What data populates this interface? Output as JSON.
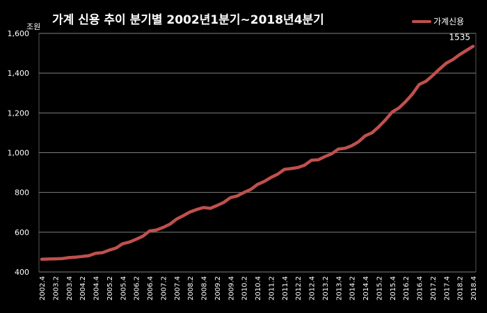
{
  "chart_data": {
    "type": "line",
    "title": "가계 신용 추이  분기별 2002년1분기~2018년4분기",
    "unit_label": "조원",
    "ylim": [
      400,
      1600
    ],
    "yticks": [
      400,
      600,
      800,
      1000,
      1200,
      1400,
      1600
    ],
    "ytick_labels": [
      "400",
      "600",
      "800",
      "1,000",
      "1,200",
      "1,400",
      "1,600"
    ],
    "grid": true,
    "legend_position": "top-right",
    "x": [
      "20024",
      "20031",
      "20032",
      "20033",
      "20034",
      "20041",
      "20042",
      "20043",
      "20044",
      "20051",
      "20052",
      "20053",
      "20054",
      "20061",
      "20062",
      "20063",
      "20064",
      "20071",
      "20072",
      "20073",
      "20074",
      "20081",
      "20082",
      "20083",
      "20084",
      "20091",
      "20092",
      "20093",
      "20094",
      "20101",
      "20102",
      "20103",
      "20104",
      "20111",
      "20112",
      "20113",
      "20114",
      "20121",
      "20122",
      "20123",
      "20124",
      "20131",
      "20132",
      "20133",
      "20134",
      "20141",
      "20142",
      "20143",
      "20144",
      "20151",
      "20152",
      "20153",
      "20154",
      "20161",
      "20162",
      "20163",
      "20164",
      "20171",
      "20172",
      "20173",
      "20174",
      "20181",
      "20182",
      "20183",
      "20184"
    ],
    "x_tick_labels": [
      "2002.4",
      "2003.2",
      "2003.4",
      "2004.2",
      "2004.4",
      "2005.2",
      "2005.4",
      "2006.2",
      "2006.4",
      "2007.2",
      "2007.4",
      "2008.2",
      "2008.4",
      "2009.2",
      "2009.4",
      "2010.2",
      "2010.4",
      "2011.2",
      "2011.4",
      "2012.2",
      "2012.4",
      "2013.2",
      "2013.4",
      "2014.2",
      "2014.4",
      "2015.2",
      "2015.4",
      "2016.2",
      "2016.4",
      "2017.2",
      "2017.4",
      "2018.2",
      "2018.4"
    ],
    "series": [
      {
        "name": "가계신용",
        "color": "#c0504d",
        "values": [
          464,
          465,
          466,
          467,
          472,
          474,
          478,
          482,
          494,
          497,
          510,
          520,
          542,
          550,
          564,
          580,
          606,
          611,
          624,
          640,
          666,
          683,
          702,
          714,
          724,
          720,
          734,
          750,
          774,
          782,
          800,
          815,
          840,
          855,
          875,
          892,
          916,
          920,
          925,
          937,
          962,
          964,
          980,
          994,
          1018,
          1022,
          1035,
          1055,
          1085,
          1100,
          1130,
          1165,
          1205,
          1225,
          1257,
          1295,
          1343,
          1359,
          1388,
          1420,
          1450,
          1468,
          1493,
          1514,
          1535
        ]
      }
    ],
    "annotations": [
      {
        "text": "1535",
        "series": 0,
        "index": 64
      }
    ]
  }
}
